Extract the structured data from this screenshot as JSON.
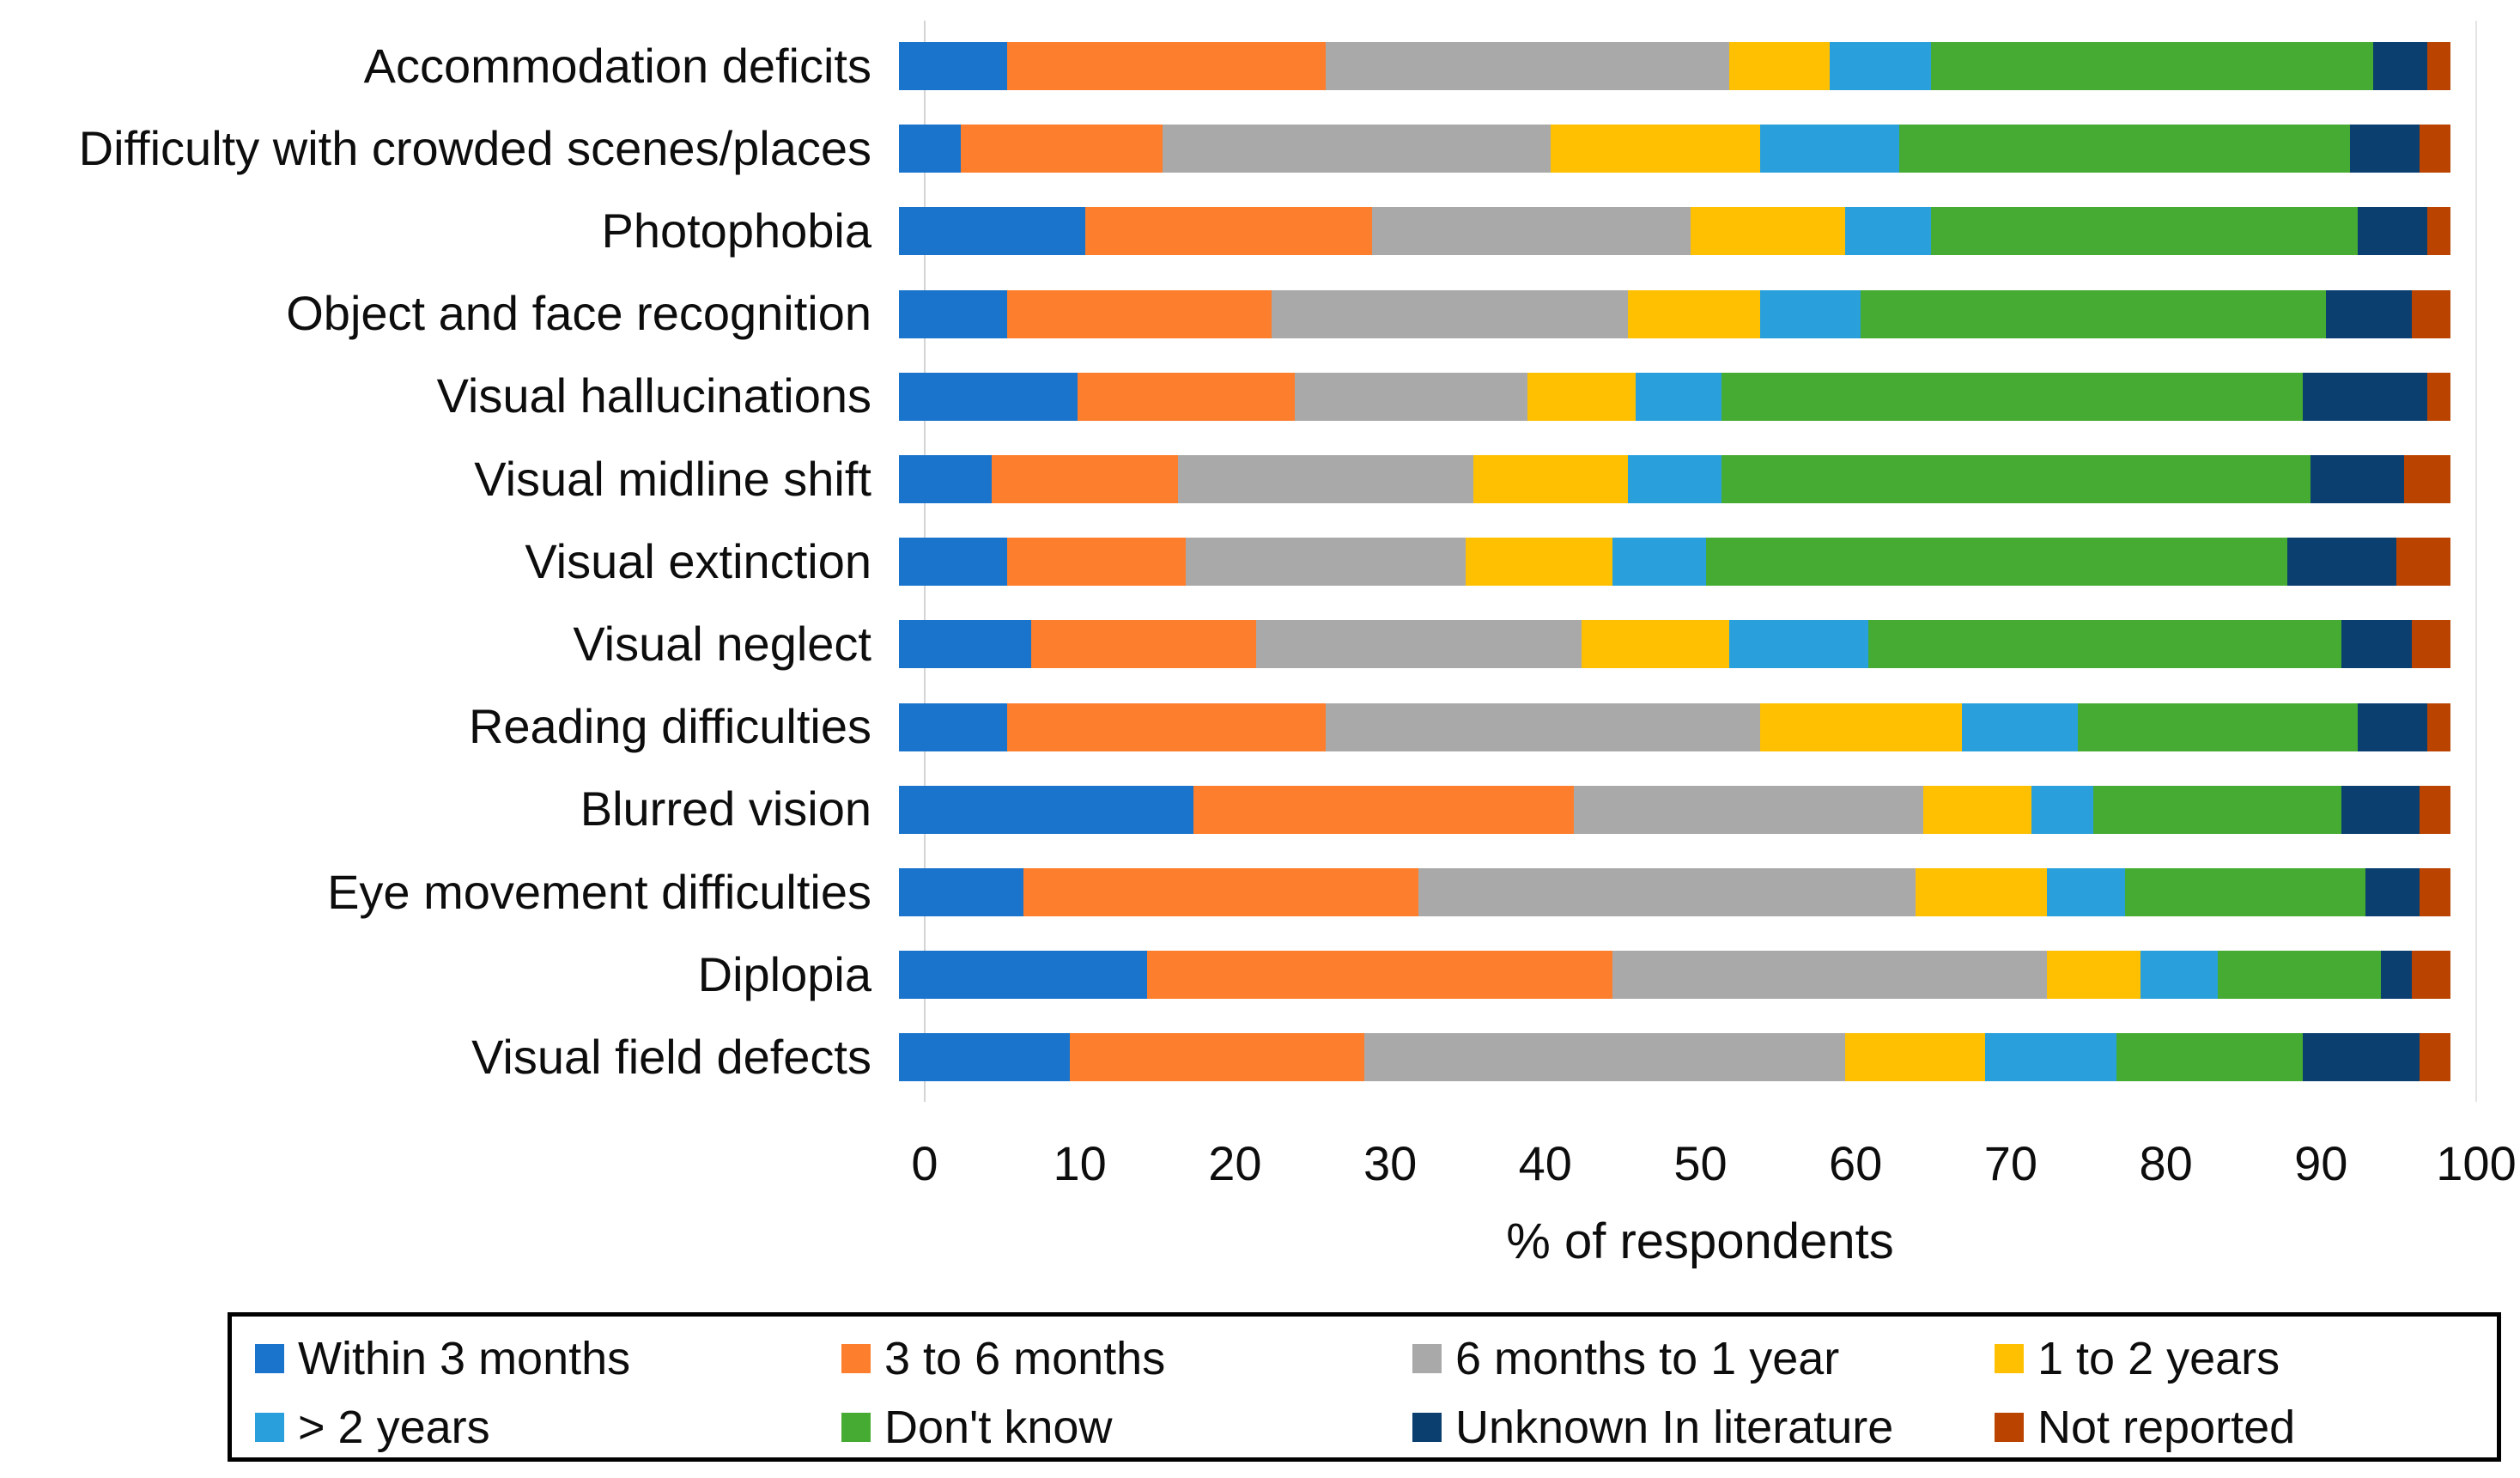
{
  "chart_data": {
    "type": "bar",
    "orientation": "horizontal-stacked",
    "title": "",
    "xlabel": "% of respondents",
    "xlim": [
      0,
      100
    ],
    "xticks": [
      0,
      10,
      20,
      30,
      40,
      50,
      60,
      70,
      80,
      90,
      100
    ],
    "grid": false,
    "legend_position": "bottom-boxed",
    "categories": [
      "Accommodation deficits",
      "Difficulty with crowded scenes/places",
      "Photophobia",
      "Object and face recognition",
      "Visual hallucinations",
      "Visual midline shift",
      "Visual extinction",
      "Visual neglect",
      "Reading difficulties",
      "Blurred vision",
      "Eye movement difficulties",
      "Diplopia",
      "Visual field defects"
    ],
    "series": [
      {
        "name": "Within 3 months",
        "color": "#1B74CB",
        "values": [
          7,
          4,
          12,
          7,
          11.5,
          6,
          7,
          8.5,
          7,
          19,
          8,
          16,
          11
        ]
      },
      {
        "name": "3 to 6 months",
        "color": "#FD7E2C",
        "values": [
          20.5,
          13,
          18.5,
          17,
          14,
          12,
          11.5,
          14.5,
          20.5,
          24.5,
          25.5,
          30,
          19
        ]
      },
      {
        "name": "6 months to 1 year",
        "color": "#A9A9A9",
        "values": [
          26,
          25,
          20.5,
          23,
          15,
          19,
          18,
          21,
          28,
          22.5,
          32,
          28,
          31
        ]
      },
      {
        "name": "1 to 2 years",
        "color": "#FFC001",
        "values": [
          6.5,
          13.5,
          10,
          8.5,
          7,
          10,
          9.5,
          9.5,
          13,
          7,
          8.5,
          6,
          9
        ]
      },
      {
        "name": "> 2 years",
        "color": "#29A0DB",
        "values": [
          6.5,
          9,
          5.5,
          6.5,
          5.5,
          6,
          6,
          9,
          7.5,
          4,
          5,
          5,
          8.5
        ]
      },
      {
        "name": "Don't know",
        "color": "#46AB33",
        "values": [
          28.5,
          29,
          27.5,
          30,
          37.5,
          38,
          37.5,
          30.5,
          18,
          16,
          15.5,
          10.5,
          12
        ]
      },
      {
        "name": "Unknown In literature",
        "color": "#0B3F70",
        "values": [
          3.5,
          4.5,
          4.5,
          5.5,
          8,
          6,
          7,
          4.5,
          4.5,
          5,
          3.5,
          2,
          7.5
        ]
      },
      {
        "name": "Not reported",
        "color": "#BA4300",
        "values": [
          1.5,
          2,
          1.5,
          2.5,
          1.5,
          3,
          3.5,
          2.5,
          1.5,
          2,
          2,
          2.5,
          2
        ]
      }
    ],
    "legend_rows": [
      [
        0,
        1,
        2,
        3
      ],
      [
        4,
        5,
        6,
        7
      ]
    ]
  }
}
